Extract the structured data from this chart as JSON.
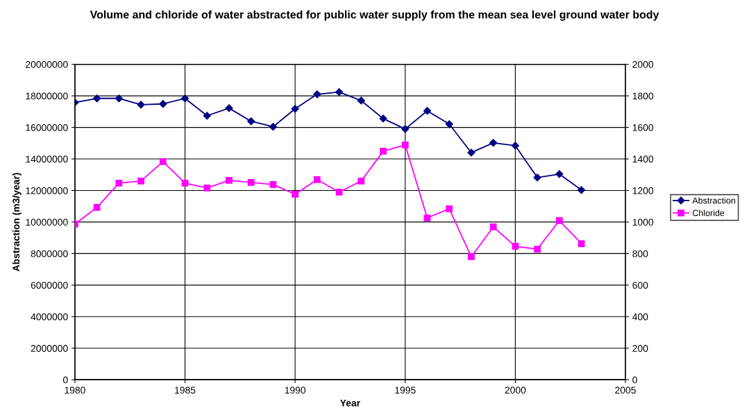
{
  "chart_data": {
    "type": "line",
    "title": "Volume and chloride of water abstracted for public water supply from the mean sea level ground water body",
    "xlabel": "Year",
    "ylabel": "Abstraction (m3/year)",
    "x": [
      1980,
      1981,
      1982,
      1983,
      1984,
      1985,
      1986,
      1987,
      1988,
      1989,
      1990,
      1991,
      1992,
      1993,
      1994,
      1995,
      1996,
      1997,
      1998,
      1999,
      2000,
      2001,
      2002,
      2003
    ],
    "series": [
      {
        "name": "Abstraction",
        "color": "#000080",
        "marker": "diamond",
        "values": [
          17580000,
          17840000,
          17840000,
          17440000,
          17490000,
          17840000,
          16740000,
          17220000,
          16390000,
          16040000,
          17180000,
          18100000,
          18240000,
          17700000,
          16560000,
          15900000,
          17050000,
          16210000,
          14400000,
          15020000,
          14840000,
          12820000,
          13040000,
          12030000
        ]
      },
      {
        "name": "Chloride",
        "color": "#ff00ff",
        "marker": "square",
        "axis": "y2",
        "values": [
          987,
          1093,
          1247,
          1260,
          1383,
          1247,
          1216,
          1264,
          1251,
          1238,
          1176,
          1269,
          1189,
          1260,
          1449,
          1489,
          1026,
          1084,
          780,
          969,
          846,
          828,
          1009,
          863
        ]
      }
    ],
    "xlim": [
      1980,
      2005
    ],
    "xticks": [
      1980,
      1985,
      1990,
      1995,
      2000,
      2005
    ],
    "ylim": [
      0,
      20000000
    ],
    "yticks": [
      0,
      2000000,
      4000000,
      6000000,
      8000000,
      10000000,
      12000000,
      14000000,
      16000000,
      18000000,
      20000000
    ],
    "y2lim": [
      0,
      2000
    ],
    "y2ticks": [
      0,
      200,
      400,
      600,
      800,
      1000,
      1200,
      1400,
      1600,
      1800,
      2000
    ],
    "grid": true,
    "legend": "right",
    "line_style": "solid"
  }
}
